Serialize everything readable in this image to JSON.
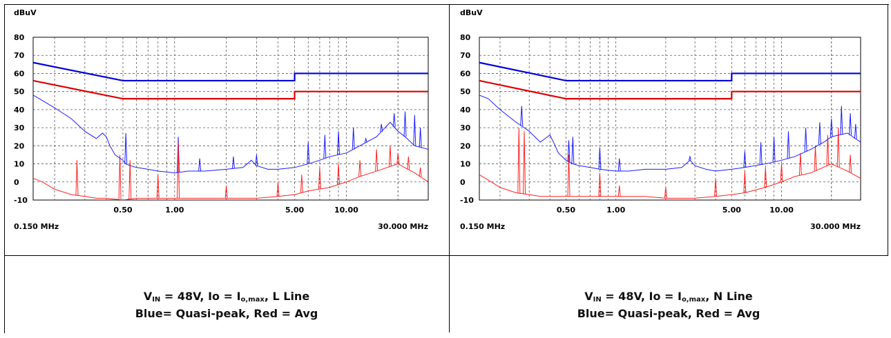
{
  "chart_data": [
    {
      "type": "line",
      "ylabel": "dBuV",
      "ylim": [
        -10,
        80
      ],
      "yticks": [
        "80",
        "70",
        "60",
        "50",
        "40",
        "30",
        "20",
        "10",
        "0",
        "-10"
      ],
      "xlim_mhz": [
        0.15,
        30
      ],
      "x_scale": "log",
      "xticks": [
        "0.50",
        "1.00",
        "5.00",
        "10.00"
      ],
      "x_start_label": "0.150 MHz",
      "x_end_label": "30.000 MHz",
      "grid": true,
      "series": [
        {
          "key": "qp_limit",
          "color": "#0000dd",
          "x": [
            0.15,
            0.5,
            0.5,
            5,
            5,
            30
          ],
          "y": [
            66,
            56,
            56,
            56,
            60,
            60
          ]
        },
        {
          "key": "avg_limit",
          "color": "#dd0000",
          "x": [
            0.15,
            0.5,
            0.5,
            5,
            5,
            30
          ],
          "y": [
            56,
            46,
            46,
            46,
            50,
            50
          ]
        },
        {
          "key": "qp_measured",
          "color": "#1a1aff",
          "x": [
            0.15,
            0.17,
            0.2,
            0.25,
            0.3,
            0.35,
            0.38,
            0.4,
            0.42,
            0.45,
            0.5,
            0.52,
            0.55,
            0.6,
            0.7,
            0.8,
            1.0,
            1.2,
            1.5,
            2.0,
            2.5,
            2.8,
            3.0,
            3.5,
            4.0,
            5.0,
            6.0,
            7.0,
            8.0,
            10.0,
            12.0,
            15.0,
            18.0,
            20.0,
            22.0,
            25.0,
            30.0
          ],
          "y": [
            48,
            45,
            41,
            35,
            28,
            24,
            27,
            25,
            20,
            15,
            12,
            10,
            9,
            8,
            7,
            6,
            5,
            6,
            6,
            7,
            8,
            12,
            9,
            7,
            7,
            8,
            10,
            12,
            14,
            16,
            20,
            25,
            33,
            28,
            25,
            20,
            18
          ]
        },
        {
          "key": "avg_measured",
          "color": "#ff2020",
          "x": [
            0.15,
            0.17,
            0.2,
            0.25,
            0.3,
            0.35,
            0.4,
            0.5,
            0.6,
            0.8,
            1.0,
            1.5,
            2.0,
            3.0,
            4.0,
            5.0,
            6.0,
            8.0,
            10.0,
            12.0,
            15.0,
            20.0,
            25.0,
            30.0
          ],
          "y": [
            2,
            0,
            -4,
            -7,
            -8,
            -9,
            -9,
            -10,
            -9,
            -9,
            -9,
            -9,
            -9,
            -9,
            -8,
            -7,
            -5,
            -3,
            0,
            3,
            6,
            10,
            5,
            0
          ]
        }
      ],
      "spikes": [
        {
          "series": "qp_measured",
          "x": [
            0.52,
            1.05,
            1.4,
            2.2,
            3.0,
            6.0,
            7.5,
            9.0,
            11.0,
            13.0,
            16.0,
            19.0,
            22.0,
            25.0,
            27.0
          ],
          "y": [
            27,
            25,
            13,
            14,
            15,
            22,
            26,
            28,
            30,
            24,
            32,
            38,
            39,
            37,
            30
          ]
        },
        {
          "series": "avg_measured",
          "x": [
            0.27,
            0.48,
            0.55,
            0.8,
            1.05,
            2.0,
            4.0,
            5.5,
            7.0,
            9.0,
            12.0,
            15.0,
            18.0,
            20.0,
            23.0,
            27.0
          ],
          "y": [
            12,
            15,
            12,
            4,
            22,
            -2,
            0,
            4,
            8,
            10,
            12,
            18,
            20,
            16,
            14,
            8
          ]
        }
      ]
    },
    {
      "type": "line",
      "ylabel": "dBuV",
      "ylim": [
        -10,
        80
      ],
      "yticks": [
        "80",
        "70",
        "60",
        "50",
        "40",
        "30",
        "20",
        "10",
        "0",
        "-10"
      ],
      "xlim_mhz": [
        0.15,
        30
      ],
      "x_scale": "log",
      "xticks": [
        "0.50",
        "1.00",
        "5.00",
        "10.00"
      ],
      "x_start_label": "0.150 MHz",
      "x_end_label": "30.000 MHz",
      "grid": true,
      "series": [
        {
          "key": "qp_limit",
          "color": "#0000dd",
          "x": [
            0.15,
            0.5,
            0.5,
            5,
            5,
            30
          ],
          "y": [
            66,
            56,
            56,
            56,
            60,
            60
          ]
        },
        {
          "key": "avg_limit",
          "color": "#dd0000",
          "x": [
            0.15,
            0.5,
            0.5,
            5,
            5,
            30
          ],
          "y": [
            56,
            46,
            46,
            46,
            50,
            50
          ]
        },
        {
          "key": "qp_measured",
          "color": "#1a1aff",
          "x": [
            0.15,
            0.17,
            0.2,
            0.25,
            0.28,
            0.3,
            0.35,
            0.4,
            0.42,
            0.45,
            0.5,
            0.55,
            0.6,
            0.7,
            0.8,
            1.0,
            1.2,
            1.5,
            2.0,
            2.5,
            2.8,
            3.0,
            3.5,
            4.0,
            5.0,
            6.0,
            8.0,
            10.0,
            12.0,
            15.0,
            18.0,
            20.0,
            25.0,
            30.0
          ],
          "y": [
            48,
            46,
            40,
            33,
            30,
            28,
            22,
            26,
            22,
            16,
            12,
            10,
            9,
            8,
            7,
            6,
            6,
            7,
            7,
            8,
            12,
            9,
            7,
            6,
            7,
            8,
            10,
            12,
            14,
            18,
            22,
            25,
            27,
            22
          ]
        },
        {
          "key": "avg_measured",
          "color": "#ff2020",
          "x": [
            0.15,
            0.17,
            0.2,
            0.25,
            0.3,
            0.35,
            0.4,
            0.5,
            0.6,
            0.8,
            1.0,
            1.5,
            2.0,
            3.0,
            4.0,
            5.0,
            6.0,
            8.0,
            10.0,
            12.0,
            15.0,
            20.0,
            25.0,
            30.0
          ],
          "y": [
            4,
            1,
            -3,
            -6,
            -7,
            -8,
            -8,
            -8,
            -8,
            -8,
            -8,
            -8,
            -9,
            -9,
            -8,
            -7,
            -6,
            -3,
            0,
            3,
            5,
            10,
            6,
            2
          ]
        }
      ],
      "spikes": [
        {
          "series": "qp_measured",
          "x": [
            0.27,
            0.52,
            0.55,
            0.8,
            1.05,
            2.8,
            6.0,
            7.5,
            9.0,
            11.0,
            14.0,
            17.0,
            20.0,
            23.0,
            26.0,
            28.0
          ],
          "y": [
            42,
            23,
            25,
            19,
            13,
            14,
            17,
            22,
            25,
            28,
            30,
            33,
            35,
            42,
            38,
            32
          ]
        },
        {
          "series": "avg_measured",
          "x": [
            0.26,
            0.28,
            0.52,
            0.8,
            1.05,
            2.0,
            4.0,
            6.0,
            8.0,
            10.0,
            13.0,
            16.0,
            19.0,
            22.0,
            26.0
          ],
          "y": [
            30,
            28,
            15,
            5,
            -2,
            -3,
            2,
            6,
            8,
            10,
            16,
            20,
            26,
            30,
            15
          ]
        }
      ]
    }
  ],
  "captions": [
    {
      "line1_parts": [
        "V",
        "IN",
        " = 48V, Io = I",
        "o,max",
        ", L Line"
      ],
      "line2": "Blue= Quasi-peak, Red = Avg"
    },
    {
      "line1_parts": [
        "V",
        "IN",
        " = 48V, Io = I",
        "o,max",
        ", N Line"
      ],
      "line2": "Blue= Quasi-peak, Red = Avg"
    }
  ]
}
